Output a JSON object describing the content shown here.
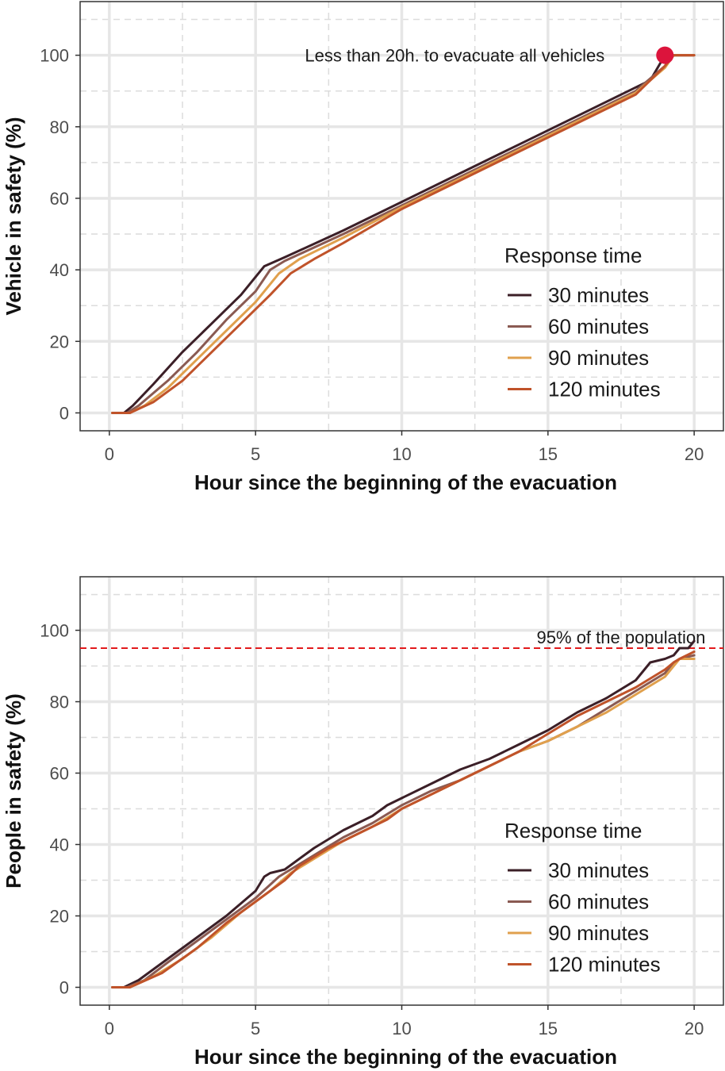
{
  "colors": {
    "30 minutes": "#3b1f27",
    "60 minutes": "#8a5a52",
    "90 minutes": "#e0a04d",
    "120 minutes": "#c0532a",
    "highlight": "#dc143c",
    "reference": "#e31a1c"
  },
  "chart_data": [
    {
      "type": "line",
      "title": "",
      "xlabel": "Hour since the beginning of the evacuation",
      "ylabel": "Vehicle in safety (%)",
      "xlim": [
        -1,
        21
      ],
      "ylim": [
        -5,
        115
      ],
      "xticks": [
        0,
        5,
        10,
        15,
        20
      ],
      "yticks": [
        0,
        20,
        40,
        60,
        80,
        100
      ],
      "xtick_labels": [
        "0",
        "5",
        "10",
        "15",
        "20"
      ],
      "ytick_labels": [
        "0",
        "20",
        "40",
        "60",
        "80",
        "100"
      ],
      "grid": true,
      "legend": {
        "title": "Response time",
        "position": "right-center"
      },
      "annotation": {
        "text": "Less than 20h. to evacuate all vehicles",
        "point": [
          19,
          100
        ]
      },
      "series": [
        {
          "name": "30 minutes",
          "points": [
            [
              0.1,
              0
            ],
            [
              0.5,
              0
            ],
            [
              0.8,
              2
            ],
            [
              1.5,
              8
            ],
            [
              2.5,
              17
            ],
            [
              3.5,
              25
            ],
            [
              4.5,
              33
            ],
            [
              5.0,
              38
            ],
            [
              5.3,
              41
            ],
            [
              6,
              43.5
            ],
            [
              8,
              51
            ],
            [
              10,
              59
            ],
            [
              12,
              67
            ],
            [
              14,
              75
            ],
            [
              16,
              83
            ],
            [
              18,
              91
            ],
            [
              18.5,
              93
            ],
            [
              19,
              100
            ],
            [
              20,
              100
            ]
          ]
        },
        {
          "name": "60 minutes",
          "points": [
            [
              0.1,
              0
            ],
            [
              0.6,
              0
            ],
            [
              1.0,
              2
            ],
            [
              2,
              9
            ],
            [
              3,
              17
            ],
            [
              4,
              26
            ],
            [
              5,
              34
            ],
            [
              5.5,
              40
            ],
            [
              6,
              42.5
            ],
            [
              8,
              50
            ],
            [
              10,
              58
            ],
            [
              12,
              66
            ],
            [
              14,
              74
            ],
            [
              16,
              82
            ],
            [
              18,
              90
            ],
            [
              19,
              97
            ],
            [
              19.2,
              100
            ],
            [
              20,
              100
            ]
          ]
        },
        {
          "name": "90 minutes",
          "points": [
            [
              0.1,
              0
            ],
            [
              0.7,
              0
            ],
            [
              1.2,
              2
            ],
            [
              2,
              7
            ],
            [
              3,
              15
            ],
            [
              4,
              23
            ],
            [
              5,
              31
            ],
            [
              5.8,
              39
            ],
            [
              6.5,
              43
            ],
            [
              8,
              49
            ],
            [
              10,
              57.5
            ],
            [
              12,
              65.5
            ],
            [
              14,
              73.5
            ],
            [
              16,
              81.5
            ],
            [
              18,
              89.5
            ],
            [
              19,
              96.5
            ],
            [
              19.3,
              100
            ],
            [
              20,
              100
            ]
          ]
        },
        {
          "name": "120 minutes",
          "points": [
            [
              0.1,
              0
            ],
            [
              0.7,
              0
            ],
            [
              1.5,
              3
            ],
            [
              2.5,
              9
            ],
            [
              3.5,
              17
            ],
            [
              4.5,
              25
            ],
            [
              5.5,
              33
            ],
            [
              6.2,
              39
            ],
            [
              7,
              43
            ],
            [
              8,
              47.5
            ],
            [
              10,
              57
            ],
            [
              12,
              65
            ],
            [
              14,
              73
            ],
            [
              16,
              81
            ],
            [
              18,
              89
            ],
            [
              19,
              97
            ],
            [
              19.3,
              100
            ],
            [
              20,
              100
            ]
          ]
        }
      ]
    },
    {
      "type": "line",
      "title": "",
      "xlabel": "Hour since the beginning of the evacuation",
      "ylabel": "People in safety (%)",
      "xlim": [
        -1,
        21
      ],
      "ylim": [
        -5,
        115
      ],
      "xticks": [
        0,
        5,
        10,
        15,
        20
      ],
      "yticks": [
        0,
        20,
        40,
        60,
        80,
        100
      ],
      "xtick_labels": [
        "0",
        "5",
        "10",
        "15",
        "20"
      ],
      "ytick_labels": [
        "0",
        "20",
        "40",
        "60",
        "80",
        "100"
      ],
      "grid": true,
      "legend": {
        "title": "Response time",
        "position": "right-center"
      },
      "reference_line": {
        "y": 95,
        "label": "95% of the population"
      },
      "series": [
        {
          "name": "30 minutes",
          "points": [
            [
              0.1,
              0
            ],
            [
              0.5,
              0
            ],
            [
              1,
              2
            ],
            [
              2,
              8
            ],
            [
              3,
              14
            ],
            [
              4,
              20
            ],
            [
              5,
              27
            ],
            [
              5.3,
              31
            ],
            [
              5.5,
              32
            ],
            [
              6,
              33
            ],
            [
              7,
              39
            ],
            [
              8,
              44
            ],
            [
              9,
              48
            ],
            [
              9.5,
              51
            ],
            [
              10,
              53
            ],
            [
              11,
              57
            ],
            [
              12,
              61
            ],
            [
              13,
              64
            ],
            [
              14,
              68
            ],
            [
              15,
              72
            ],
            [
              16,
              77
            ],
            [
              17,
              81
            ],
            [
              18,
              86
            ],
            [
              18.5,
              91
            ],
            [
              19,
              92
            ],
            [
              19.3,
              93
            ],
            [
              19.5,
              95
            ],
            [
              19.8,
              95
            ],
            [
              20,
              97
            ]
          ]
        },
        {
          "name": "60 minutes",
          "points": [
            [
              0.1,
              0
            ],
            [
              0.6,
              0
            ],
            [
              1.2,
              2
            ],
            [
              2,
              7
            ],
            [
              3,
              13
            ],
            [
              4,
              19
            ],
            [
              5,
              25
            ],
            [
              5.8,
              31
            ],
            [
              6,
              32
            ],
            [
              7,
              37
            ],
            [
              8,
              42
            ],
            [
              9,
              46
            ],
            [
              10,
              51
            ],
            [
              11,
              55
            ],
            [
              12,
              58
            ],
            [
              13,
              62
            ],
            [
              14,
              66
            ],
            [
              15,
              69
            ],
            [
              16,
              73
            ],
            [
              17,
              78
            ],
            [
              18,
              83
            ],
            [
              19,
              88
            ],
            [
              19.3,
              91
            ],
            [
              19.5,
              92
            ],
            [
              20,
              93
            ]
          ]
        },
        {
          "name": "90 minutes",
          "points": [
            [
              0.1,
              0
            ],
            [
              0.7,
              0
            ],
            [
              1.5,
              3
            ],
            [
              2.5,
              8
            ],
            [
              3.5,
              14
            ],
            [
              4.5,
              21
            ],
            [
              5.5,
              27
            ],
            [
              6.2,
              32
            ],
            [
              7,
              36
            ],
            [
              8,
              41
            ],
            [
              9,
              45
            ],
            [
              10,
              50
            ],
            [
              11,
              54
            ],
            [
              12,
              58
            ],
            [
              13,
              62
            ],
            [
              14,
              66
            ],
            [
              15,
              69
            ],
            [
              16,
              73
            ],
            [
              17,
              77
            ],
            [
              18,
              82
            ],
            [
              19,
              87
            ],
            [
              19.3,
              90
            ],
            [
              19.5,
              92
            ],
            [
              20,
              92
            ]
          ]
        },
        {
          "name": "120 minutes",
          "points": [
            [
              0.1,
              0
            ],
            [
              0.7,
              0
            ],
            [
              1.8,
              4
            ],
            [
              3,
              11
            ],
            [
              4,
              18
            ],
            [
              5,
              24
            ],
            [
              6,
              30
            ],
            [
              6.5,
              34
            ],
            [
              7.5,
              39
            ],
            [
              8.5,
              43
            ],
            [
              9.5,
              47
            ],
            [
              10,
              50
            ],
            [
              11,
              54
            ],
            [
              12,
              58
            ],
            [
              13,
              62
            ],
            [
              14,
              66
            ],
            [
              15,
              71
            ],
            [
              16,
              76
            ],
            [
              17,
              80
            ],
            [
              18,
              84
            ],
            [
              19,
              89
            ],
            [
              19.3,
              91
            ],
            [
              19.5,
              92
            ],
            [
              20,
              94
            ]
          ]
        }
      ]
    }
  ]
}
